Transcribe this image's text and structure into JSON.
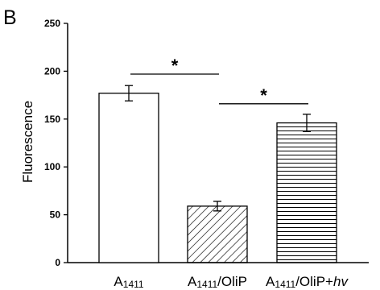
{
  "panel_label": "B",
  "chart_data": {
    "type": "bar",
    "ylabel": "Fluorescence",
    "xlabel": "",
    "ylim": [
      0,
      250
    ],
    "yticks": [
      0,
      50,
      100,
      150,
      200,
      250
    ],
    "categories": [
      {
        "prefix": "A",
        "sub": "1411",
        "suffix": "",
        "italic": ""
      },
      {
        "prefix": "A",
        "sub": "1411",
        "suffix": "/OliP",
        "italic": ""
      },
      {
        "prefix": "A",
        "sub": "1411",
        "suffix": "/OliP+",
        "italic": "hv"
      }
    ],
    "values": [
      177,
      59,
      146
    ],
    "errors": [
      8,
      5,
      9
    ],
    "fills": [
      "none",
      "diagonal-hatch",
      "horizontal-hatch"
    ],
    "significance": [
      {
        "from": 0,
        "to": 1,
        "y": 197,
        "label": "*"
      },
      {
        "from": 1,
        "to": 2,
        "y": 166,
        "label": "*"
      }
    ],
    "grid": false,
    "legend": "none"
  }
}
